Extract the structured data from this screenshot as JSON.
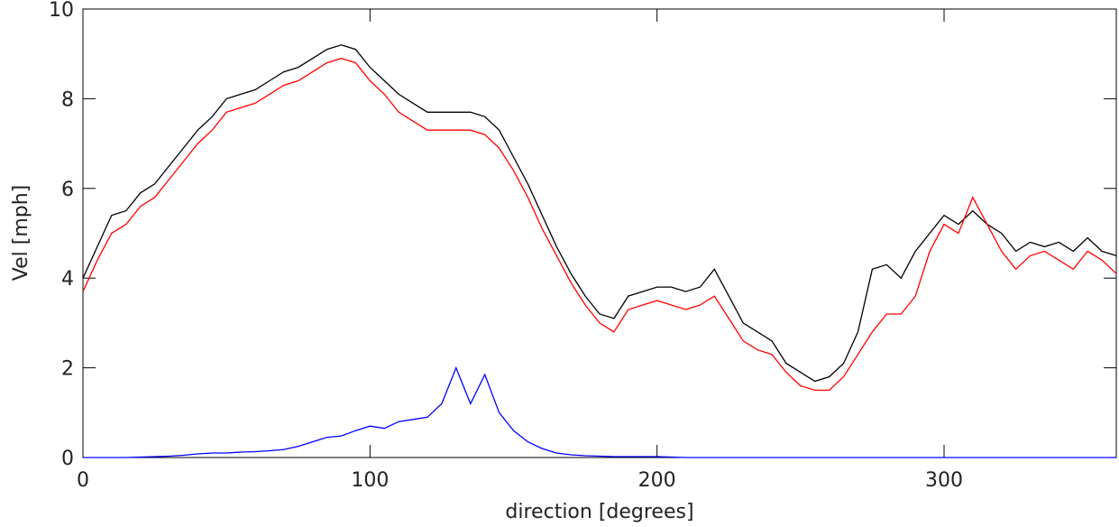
{
  "chart_data": {
    "type": "line",
    "x_label": "direction [degrees]",
    "y_label": "Vel [mph]",
    "x": [
      0,
      5,
      10,
      15,
      20,
      25,
      30,
      35,
      40,
      45,
      50,
      55,
      60,
      65,
      70,
      75,
      80,
      85,
      90,
      95,
      100,
      105,
      110,
      115,
      120,
      125,
      130,
      135,
      140,
      145,
      150,
      155,
      160,
      165,
      170,
      175,
      180,
      185,
      190,
      195,
      200,
      205,
      210,
      215,
      220,
      225,
      230,
      235,
      240,
      245,
      250,
      255,
      260,
      265,
      270,
      275,
      280,
      285,
      290,
      295,
      300,
      305,
      310,
      315,
      320,
      325,
      330,
      335,
      340,
      345,
      350,
      355,
      360
    ],
    "series": [
      {
        "color": "#000000",
        "values": [
          4.0,
          4.7,
          5.4,
          5.5,
          5.9,
          6.1,
          6.5,
          6.9,
          7.3,
          7.6,
          8.0,
          8.1,
          8.2,
          8.4,
          8.6,
          8.7,
          8.9,
          9.1,
          9.2,
          9.1,
          8.7,
          8.4,
          8.1,
          7.9,
          7.7,
          7.7,
          7.7,
          7.7,
          7.6,
          7.3,
          6.7,
          6.1,
          5.4,
          4.7,
          4.1,
          3.6,
          3.2,
          3.1,
          3.6,
          3.7,
          3.8,
          3.8,
          3.7,
          3.8,
          4.2,
          3.6,
          3.0,
          2.8,
          2.6,
          2.1,
          1.9,
          1.7,
          1.8,
          2.1,
          2.8,
          4.2,
          4.3,
          4.0,
          4.6,
          5.0,
          5.4,
          5.2,
          5.5,
          5.2,
          5.0,
          4.6,
          4.8,
          4.7,
          4.8,
          4.6,
          4.9,
          4.6,
          4.5
        ]
      },
      {
        "color": "#ff0000",
        "values": [
          3.7,
          4.4,
          5.0,
          5.2,
          5.6,
          5.8,
          6.2,
          6.6,
          7.0,
          7.3,
          7.7,
          7.8,
          7.9,
          8.1,
          8.3,
          8.4,
          8.6,
          8.8,
          8.9,
          8.8,
          8.4,
          8.1,
          7.7,
          7.5,
          7.3,
          7.3,
          7.3,
          7.3,
          7.2,
          6.9,
          6.4,
          5.8,
          5.1,
          4.5,
          3.9,
          3.4,
          3.0,
          2.8,
          3.3,
          3.4,
          3.5,
          3.4,
          3.3,
          3.4,
          3.6,
          3.1,
          2.6,
          2.4,
          2.3,
          1.9,
          1.6,
          1.5,
          1.5,
          1.8,
          2.3,
          2.8,
          3.2,
          3.2,
          3.6,
          4.6,
          5.2,
          5.0,
          5.8,
          5.2,
          4.6,
          4.2,
          4.5,
          4.6,
          4.4,
          4.2,
          4.6,
          4.4,
          4.1
        ]
      },
      {
        "color": "#0000ff",
        "values": [
          0,
          0,
          0,
          0,
          0.01,
          0.02,
          0.03,
          0.05,
          0.08,
          0.1,
          0.1,
          0.12,
          0.13,
          0.15,
          0.18,
          0.25,
          0.35,
          0.45,
          0.48,
          0.6,
          0.7,
          0.65,
          0.8,
          0.85,
          0.9,
          1.2,
          2.0,
          1.2,
          1.85,
          1.0,
          0.6,
          0.35,
          0.2,
          0.1,
          0.06,
          0.04,
          0.03,
          0.02,
          0.02,
          0.02,
          0.02,
          0.01,
          0,
          0,
          0,
          0,
          0,
          0,
          0,
          0,
          0,
          0,
          0,
          0,
          0,
          0,
          0,
          0,
          0,
          0,
          0,
          0,
          0,
          0,
          0,
          0,
          0,
          0,
          0,
          0,
          0,
          0,
          0
        ]
      }
    ],
    "xlim": [
      0,
      360
    ],
    "xticks": [
      0,
      100,
      200,
      300
    ],
    "ylim": [
      0,
      10
    ],
    "yticks": [
      0,
      2,
      4,
      6,
      8,
      10
    ]
  }
}
